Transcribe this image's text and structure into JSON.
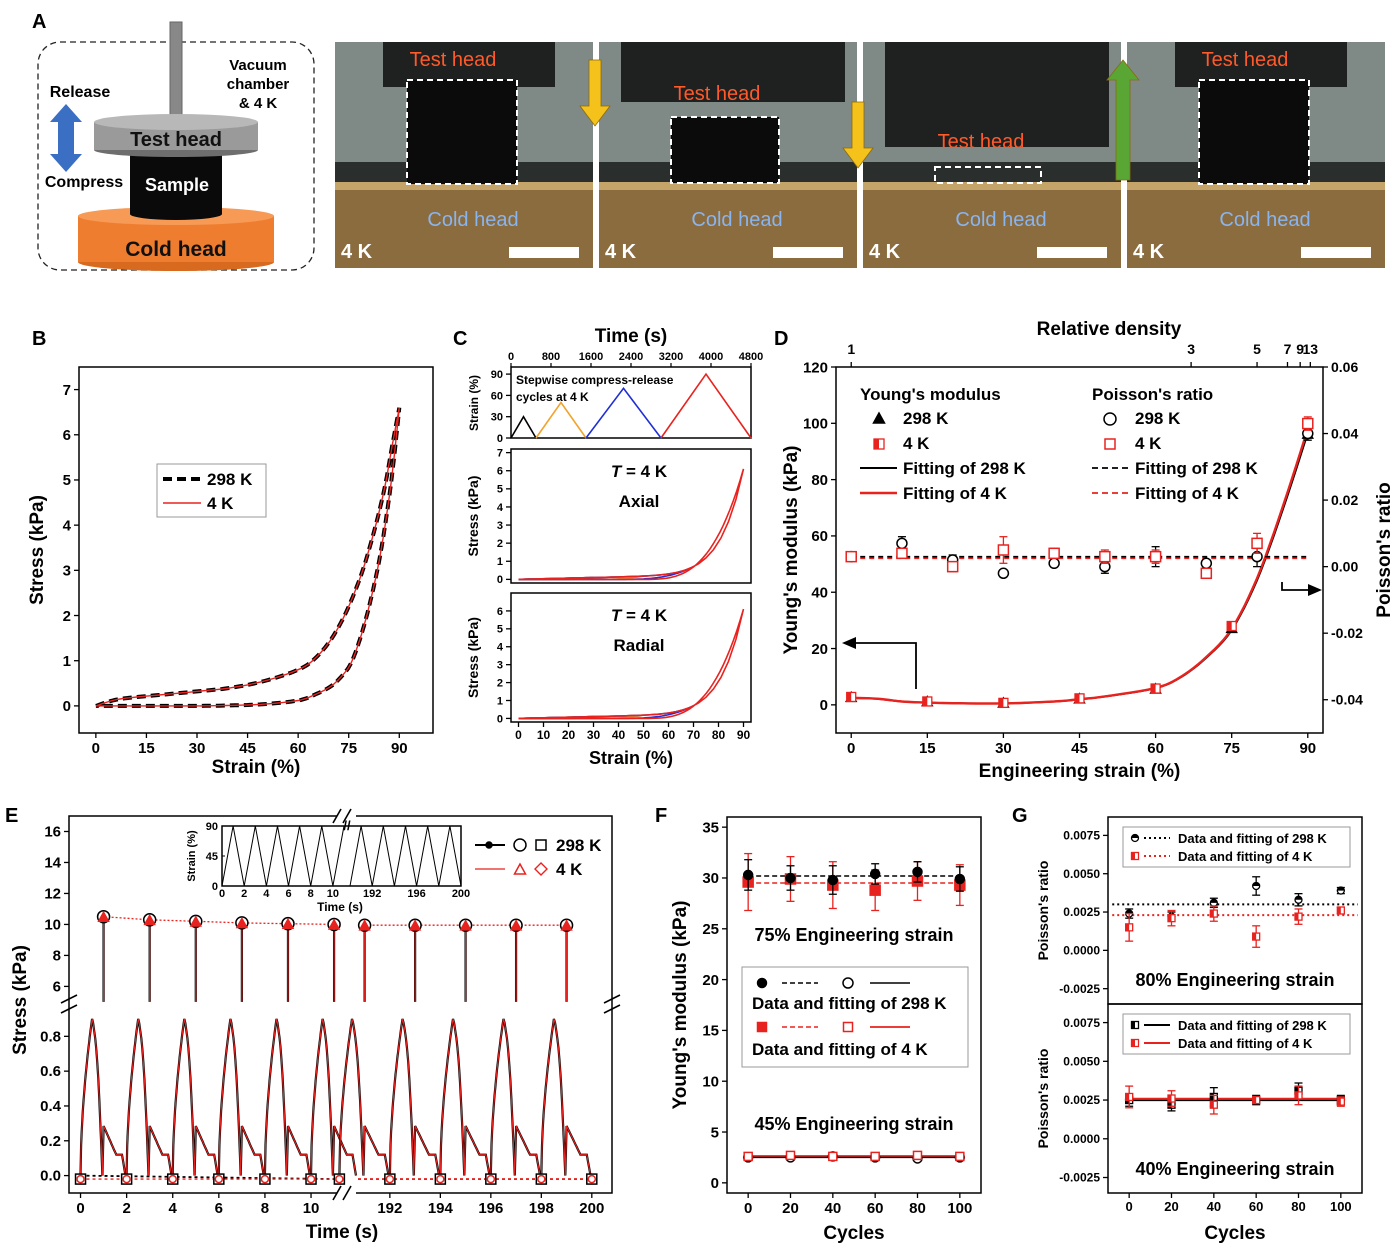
{
  "panels": {
    "A": "A",
    "B": "B",
    "C": "C",
    "D": "D",
    "E": "E",
    "F": "F",
    "G": "G"
  },
  "schematic": {
    "test_head": "Test head",
    "sample": "Sample",
    "cold_head": "Cold head",
    "release": "Release",
    "compress": "Compress",
    "chamber_line1": "Vacuum",
    "chamber_line2": "chamber",
    "chamber_line3": "& 4 K"
  },
  "photos": [
    {
      "top_label": "Test head",
      "bottom_label": "Cold head",
      "temp": "4 K",
      "arrow": "down"
    },
    {
      "top_label": "Test head",
      "bottom_label": "Cold head",
      "temp": "4 K",
      "arrow": "down"
    },
    {
      "top_label": "Test head",
      "bottom_label": "Cold head",
      "temp": "4 K",
      "arrow": "up"
    },
    {
      "top_label": "Test head",
      "bottom_label": "Cold head",
      "temp": "4 K",
      "arrow": "none"
    }
  ],
  "colors": {
    "black": "#000000",
    "red": "#e8231f",
    "orange": "#f2a32b",
    "blue": "#1f2fd6",
    "label_orange": "#ff5a2a",
    "label_blue": "#8ab4ee",
    "sched_arrow": "#3a6fc4",
    "arrow_yellow": "#f4c21a",
    "arrow_green": "#5aa634"
  },
  "chart_data": [
    {
      "id": "B",
      "type": "line",
      "xlabel": "Strain (%)",
      "ylabel": "Stress (kPa)",
      "xlim": [
        -5,
        100
      ],
      "ylim": [
        -0.6,
        7.5
      ],
      "xticks": [
        0,
        15,
        30,
        45,
        60,
        75,
        90
      ],
      "yticks": [
        0,
        1,
        2,
        3,
        4,
        5,
        6,
        7
      ],
      "legend": [
        "298 K",
        "4 K"
      ],
      "legend_pos": "center-left",
      "loading": {
        "x": [
          0,
          5,
          10,
          20,
          30,
          40,
          50,
          60,
          65,
          70,
          75,
          80,
          85,
          88,
          90
        ],
        "y": [
          0,
          0.12,
          0.18,
          0.25,
          0.32,
          0.4,
          0.55,
          0.8,
          1.05,
          1.5,
          2.2,
          3.2,
          4.6,
          5.8,
          6.6
        ]
      },
      "unloading": {
        "x": [
          90,
          88,
          86,
          84,
          82,
          80,
          78,
          76,
          74,
          70,
          65,
          60,
          50,
          40,
          30,
          20,
          10,
          5,
          0
        ],
        "y": [
          6.6,
          5.2,
          4.1,
          3.2,
          2.5,
          1.9,
          1.4,
          1.0,
          0.75,
          0.45,
          0.25,
          0.12,
          0.04,
          0.01,
          0.0,
          0.0,
          0.0,
          0.0,
          0.0
        ]
      }
    },
    {
      "id": "C-top",
      "type": "line",
      "xlabel": "Time (s)",
      "ylabel": "Strain (%)",
      "xlim": [
        0,
        4800
      ],
      "ylim": [
        0,
        100
      ],
      "xticks": [
        0,
        800,
        1600,
        2400,
        3200,
        4000,
        4800
      ],
      "yticks": [
        0,
        30,
        60,
        90
      ],
      "annotation": [
        "Stepwise compress-release",
        "cycles at 4 K"
      ],
      "series": [
        {
          "x": [
            0,
            250,
            500
          ],
          "y": [
            0,
            30,
            0
          ]
        },
        {
          "x": [
            500,
            1000,
            1500
          ],
          "y": [
            0,
            50,
            0
          ]
        },
        {
          "x": [
            1500,
            2250,
            3000
          ],
          "y": [
            0,
            70,
            0
          ]
        },
        {
          "x": [
            3000,
            3900,
            4800
          ],
          "y": [
            0,
            90,
            0
          ]
        }
      ]
    },
    {
      "id": "C-axial",
      "type": "line",
      "xlabel": "",
      "ylabel": "Stress (kPa)",
      "xlim": [
        -3,
        93
      ],
      "ylim": [
        -0.2,
        7.2
      ],
      "yticks": [
        0,
        1,
        2,
        3,
        4,
        5,
        6,
        7
      ],
      "label_italic": "T",
      "label_rest": " = 4 K",
      "label2": "Axial",
      "max_strain": [
        30,
        50,
        70,
        90
      ]
    },
    {
      "id": "C-radial",
      "type": "line",
      "xlabel": "Strain (%)",
      "ylabel": "Stress (kPa)",
      "xlim": [
        -3,
        93
      ],
      "ylim": [
        -0.2,
        7.0
      ],
      "xticks": [
        0,
        10,
        20,
        30,
        40,
        50,
        60,
        70,
        80,
        90
      ],
      "yticks": [
        0,
        1,
        2,
        3,
        4,
        5,
        6
      ],
      "label_italic": "T",
      "label_rest": " = 4 K",
      "label2": "Radial",
      "max_strain": [
        30,
        50,
        70,
        90
      ]
    },
    {
      "id": "D",
      "type": "scatter",
      "title_top": "Relative density",
      "xlabel": "Engineering strain (%)",
      "ylabel": "Young's modulus (kPa)",
      "ylabel2": "Poisson's ratio",
      "xlim": [
        -3,
        93
      ],
      "ylim": [
        -10,
        120
      ],
      "y2lim": [
        -0.05,
        0.06
      ],
      "xticks": [
        0,
        15,
        30,
        45,
        60,
        75,
        90
      ],
      "yticks": [
        0,
        20,
        40,
        60,
        80,
        100,
        120
      ],
      "y2ticks": [
        -0.04,
        -0.02,
        0.0,
        0.02,
        0.04,
        0.06
      ],
      "y2ticklabels": [
        "-0.04",
        "-0.02",
        "0.00",
        "0.02",
        "0.04",
        "0.06"
      ],
      "top_ticks": [
        {
          "x": 0,
          "label": "1"
        },
        {
          "x": 67,
          "label": "3"
        },
        {
          "x": 80,
          "label": "5"
        },
        {
          "x": 86,
          "label": "7"
        },
        {
          "x": 88.5,
          "label": "9"
        },
        {
          "x": 90.5,
          "label": "13"
        }
      ],
      "legend_group1_title": "Young's modulus",
      "legend_group2_title": "Poisson's ratio",
      "legend_labels": [
        "298 K",
        "4 K",
        "Fitting of 298 K",
        "Fitting of 4 K"
      ],
      "youngs_298": {
        "x": [
          0,
          15,
          30,
          45,
          60,
          75,
          90
        ],
        "y": [
          2.5,
          1.0,
          0.5,
          2.0,
          5.5,
          27,
          96
        ]
      },
      "youngs_4": {
        "x": [
          0,
          15,
          30,
          45,
          60,
          75,
          90
        ],
        "y": [
          2.8,
          1.2,
          0.7,
          2.3,
          5.8,
          28,
          100
        ]
      },
      "youngs_fit_x": [
        0,
        5,
        10,
        15,
        20,
        30,
        40,
        45,
        50,
        60,
        65,
        70,
        75,
        80,
        85,
        90
      ],
      "youngs_fit_y": [
        2.5,
        2.2,
        1.2,
        0.8,
        0.6,
        0.5,
        1.2,
        2.0,
        3.0,
        6.0,
        10,
        17,
        27,
        45,
        70,
        98
      ],
      "poisson_298": {
        "x": [
          0,
          10,
          20,
          30,
          40,
          50,
          60,
          70,
          80,
          90
        ],
        "y": [
          0.003,
          0.007,
          0.002,
          -0.002,
          0.001,
          0.0,
          0.003,
          0.001,
          0.003,
          0.04
        ],
        "err": [
          0.001,
          0.002,
          0.0015,
          0.001,
          0.001,
          0.002,
          0.003,
          0.001,
          0.003,
          0.002
        ]
      },
      "poisson_4": {
        "x": [
          0,
          10,
          20,
          30,
          40,
          50,
          60,
          70,
          80,
          90
        ],
        "y": [
          0.003,
          0.004,
          0.0,
          0.005,
          0.004,
          0.003,
          0.003,
          -0.002,
          0.007,
          0.043
        ],
        "err": [
          0.001,
          0.001,
          0.0015,
          0.004,
          0.0015,
          0.002,
          0.002,
          0.001,
          0.003,
          0.002
        ]
      },
      "poisson_fit": 0.0025
    },
    {
      "id": "E",
      "type": "line",
      "xlabel": "Time (s)",
      "ylabel": "Stress (kPa)",
      "xticks_left": [
        0,
        2,
        4,
        6,
        8,
        10
      ],
      "xticks_right": [
        192,
        194,
        196,
        198,
        200
      ],
      "yticks_upper": [
        6,
        8,
        10,
        12,
        14,
        16
      ],
      "yticks_lower": [
        0.0,
        0.2,
        0.4,
        0.6,
        0.8
      ],
      "yticklabels_lower": [
        "0.0",
        "0.2",
        "0.4",
        "0.6",
        "0.8"
      ],
      "legend": [
        "298 K",
        "4 K"
      ],
      "peak_times_left": [
        1,
        3,
        5,
        7,
        9,
        11
      ],
      "peak_times_right": [
        191,
        193,
        195,
        197,
        199
      ],
      "peak_stress": [
        10.5,
        10.3,
        10.2,
        10.1,
        10.05,
        10.0,
        9.95,
        9.95,
        9.95,
        9.95,
        9.95
      ],
      "inset": {
        "ylabel": "Strain (%)",
        "xlabel": "Time (s)",
        "yticks": [
          0,
          45,
          90
        ],
        "xticks_left": [
          0,
          2,
          4,
          6,
          8,
          10
        ],
        "xticks_right": [
          192,
          196,
          200
        ]
      }
    },
    {
      "id": "F",
      "type": "scatter",
      "xlabel": "Cycles",
      "ylabel": "Young's modulus (kPa)",
      "xlim": [
        -10,
        110
      ],
      "ylim": [
        -1,
        36
      ],
      "xticks": [
        0,
        20,
        40,
        60,
        80,
        100
      ],
      "yticks": [
        0,
        5,
        10,
        15,
        20,
        25,
        30,
        35
      ],
      "label_75": "75% Engineering strain",
      "label_45": "45% Engineering strain",
      "legend": [
        "Data and fitting of 298 K",
        "Data and fitting of 4 K"
      ],
      "s75_298": {
        "x": [
          0,
          20,
          40,
          60,
          80,
          100
        ],
        "y": [
          30.3,
          30.0,
          29.8,
          30.4,
          30.6,
          29.9
        ],
        "err": [
          1.5,
          1.2,
          1.4,
          1.0,
          1.0,
          1.2
        ]
      },
      "s75_4": {
        "x": [
          0,
          20,
          40,
          60,
          80,
          100
        ],
        "y": [
          29.6,
          29.9,
          29.3,
          28.8,
          29.7,
          29.3
        ],
        "err": [
          2.8,
          2.2,
          2.3,
          2.0,
          1.9,
          2.0
        ]
      },
      "fit75_298": 30.2,
      "fit75_4": 29.5,
      "s45_298": {
        "x": [
          0,
          20,
          40,
          60,
          80,
          100
        ],
        "y": [
          2.5,
          2.5,
          2.6,
          2.5,
          2.4,
          2.5
        ]
      },
      "s45_4": {
        "x": [
          0,
          20,
          40,
          60,
          80,
          100
        ],
        "y": [
          2.6,
          2.7,
          2.6,
          2.6,
          2.7,
          2.6
        ]
      },
      "fit45": 2.6
    },
    {
      "id": "G",
      "type": "scatter",
      "xlabel": "Cycles",
      "ylabel": "Poisson's ratio",
      "xlim": [
        -10,
        110
      ],
      "xticks": [
        0,
        20,
        40,
        60,
        80,
        100
      ],
      "yticks": [
        -0.0025,
        0.0,
        0.0025,
        0.005,
        0.0075
      ],
      "yticklabels": [
        "-0.0025",
        "0.0000",
        "0.0025",
        "0.0050",
        "0.0075"
      ],
      "label_80": "80% Engineering strain",
      "label_40": "40% Engineering strain",
      "legend": [
        "Data and fitting of 298 K",
        "Data and fitting of 4 K"
      ],
      "s80_298": {
        "x": [
          0,
          20,
          40,
          60,
          80,
          100
        ],
        "y": [
          0.0024,
          0.0022,
          0.0031,
          0.0042,
          0.0033,
          0.0039
        ],
        "err": [
          0.0003,
          0.0003,
          0.0003,
          0.0006,
          0.0004,
          0.0002
        ]
      },
      "s80_4": {
        "x": [
          0,
          20,
          40,
          60,
          80,
          100
        ],
        "y": [
          0.0015,
          0.0021,
          0.0024,
          0.0009,
          0.0022,
          0.0026
        ],
        "err": [
          0.0009,
          0.0005,
          0.0005,
          0.0007,
          0.0005,
          0.0002
        ]
      },
      "fit80_298": 0.003,
      "fit80_4": 0.0023,
      "s40_298": {
        "x": [
          0,
          20,
          40,
          60,
          80,
          100
        ],
        "y": [
          0.0025,
          0.0022,
          0.0027,
          0.0025,
          0.0031,
          0.0025
        ],
        "err": [
          0.0004,
          0.0004,
          0.0006,
          0.0003,
          0.0005,
          0.0003
        ]
      },
      "s40_4": {
        "x": [
          0,
          20,
          40,
          60,
          80,
          100
        ],
        "y": [
          0.0027,
          0.0026,
          0.0022,
          0.0025,
          0.0028,
          0.0024
        ],
        "err": [
          0.0007,
          0.0005,
          0.0006,
          0.0002,
          0.0006,
          0.0003
        ]
      },
      "fit40": 0.0025
    }
  ]
}
